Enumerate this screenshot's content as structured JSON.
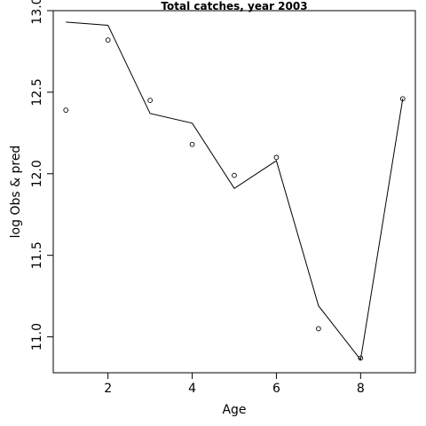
{
  "chart_data": {
    "type": "line",
    "title": "Total catches, year 2003",
    "xlabel": "Age",
    "ylabel": "log Obs & pred",
    "xlim": [
      0.7,
      9.3
    ],
    "ylim": [
      10.78,
      13.0
    ],
    "x_ticks": [
      2,
      4,
      6,
      8
    ],
    "y_ticks": [
      11.0,
      11.5,
      12.0,
      12.5,
      13.0
    ],
    "x_tick_labels": [
      "2",
      "4",
      "6",
      "8"
    ],
    "y_tick_labels": [
      "11.0",
      "11.5",
      "12.0",
      "12.5",
      "13.0"
    ],
    "grid": false,
    "series": [
      {
        "style": "line",
        "x": [
          1,
          2,
          3,
          4,
          5,
          6,
          7,
          8,
          9
        ],
        "y": [
          12.93,
          12.91,
          12.37,
          12.31,
          11.91,
          12.08,
          11.19,
          10.86,
          12.46
        ]
      },
      {
        "style": "points",
        "x": [
          1,
          2,
          3,
          4,
          5,
          6,
          7,
          8,
          9
        ],
        "y": [
          12.39,
          12.82,
          12.45,
          12.18,
          11.99,
          12.1,
          11.05,
          10.87,
          12.46
        ]
      }
    ]
  }
}
